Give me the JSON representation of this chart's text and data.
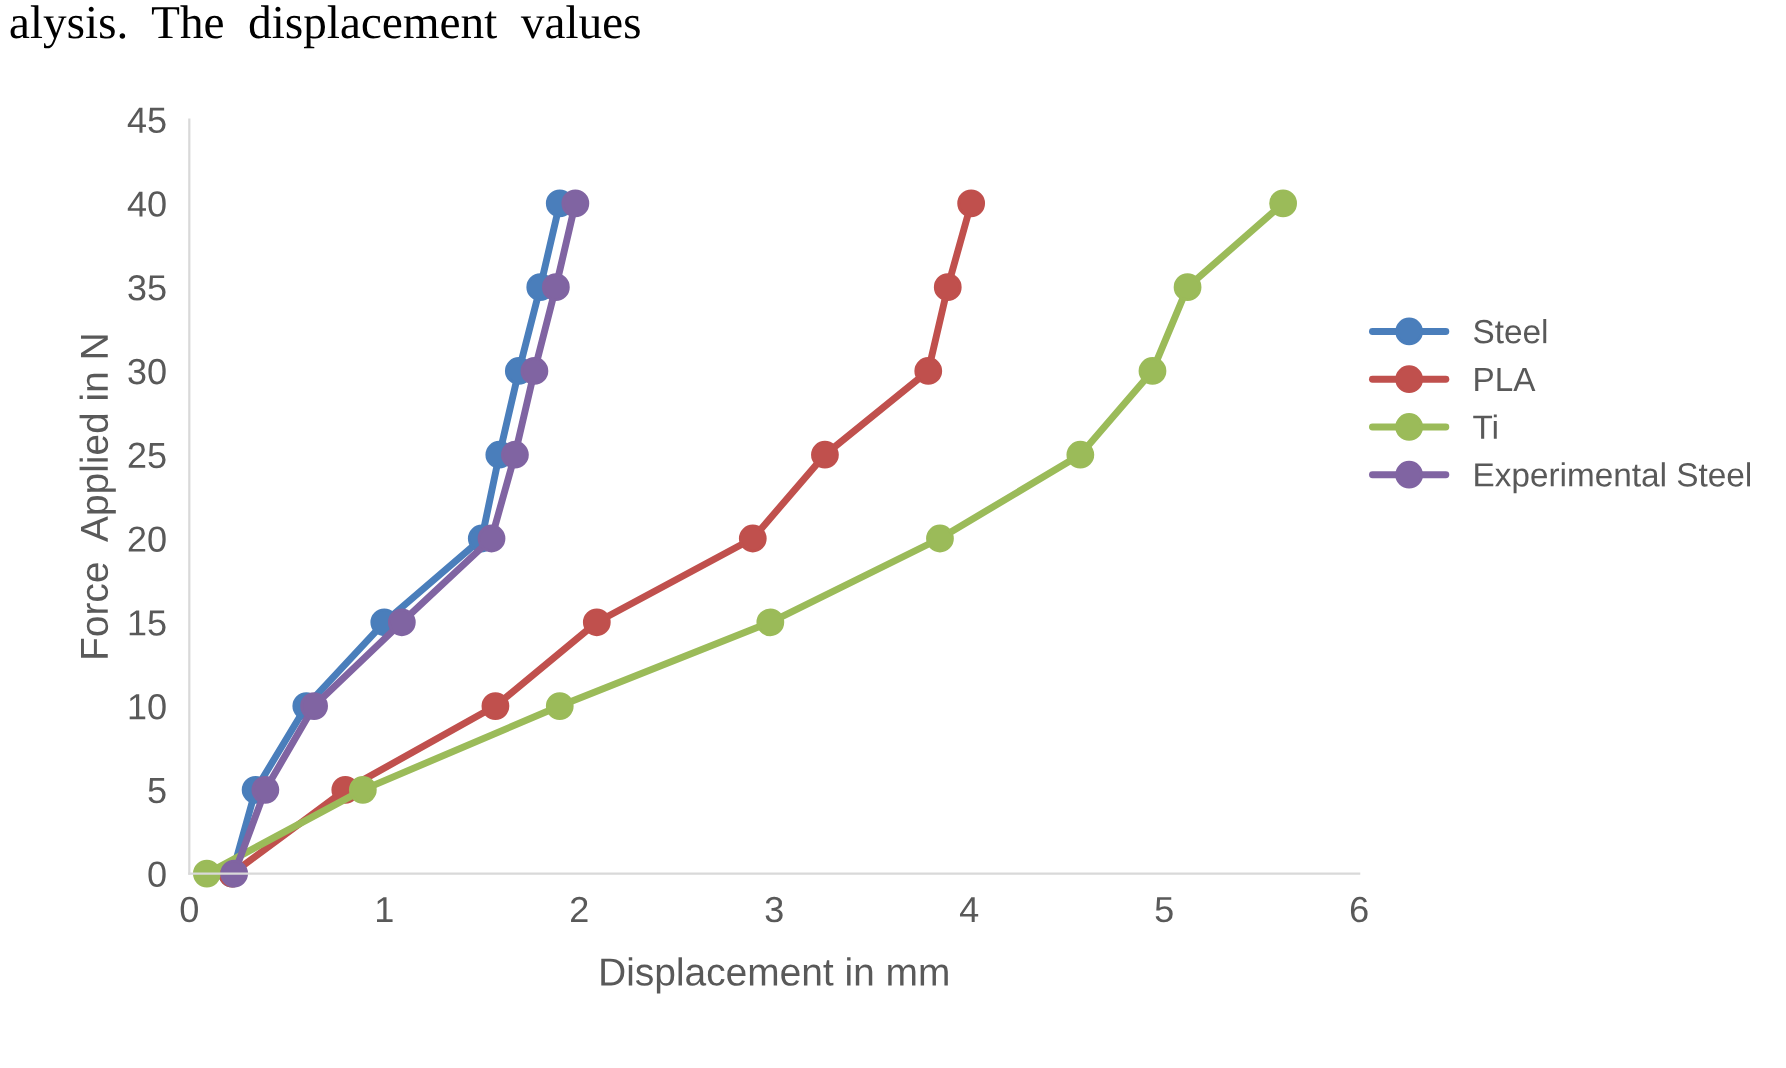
{
  "chart_data": {
    "type": "line",
    "xlabel": "Displacement in mm",
    "ylabel": "Force  Applied in N",
    "annotations": [
      "alysis.  The  displacement  values"
    ],
    "xlim": [
      0,
      6
    ],
    "xticks": [
      0,
      1,
      2,
      3,
      4,
      5,
      6
    ],
    "ylim": [
      0,
      45
    ],
    "yticks": [
      0,
      5,
      10,
      15,
      20,
      25,
      30,
      35,
      40,
      45
    ],
    "grid": false,
    "legend": "right",
    "marker": "circle",
    "line_style": "solid",
    "series": [
      {
        "name": "Steel",
        "color": "#4a7ebb",
        "x": [
          0.22,
          0.34,
          0.6,
          1.0,
          1.5,
          1.59,
          1.69,
          1.8,
          1.9
        ],
        "values": [
          0,
          5,
          10,
          15,
          20,
          25,
          30,
          35,
          40
        ]
      },
      {
        "name": "PLA",
        "color": "#c0504d",
        "x": [
          0.22,
          0.8,
          1.57,
          2.09,
          2.89,
          3.26,
          3.79,
          3.89,
          4.01
        ],
        "values": [
          0,
          5,
          10,
          15,
          20,
          25,
          30,
          35,
          40
        ]
      },
      {
        "name": "Ti",
        "color": "#9bbb59",
        "x": [
          0.09,
          0.89,
          1.9,
          2.98,
          3.85,
          4.57,
          4.94,
          5.12,
          5.61
        ],
        "values": [
          0,
          5,
          10,
          15,
          20,
          25,
          30,
          35,
          40
        ]
      },
      {
        "name": "Experimental Steel",
        "color": "#8064a2",
        "x": [
          0.23,
          0.39,
          0.64,
          1.09,
          1.55,
          1.67,
          1.77,
          1.88,
          1.98
        ],
        "values": [
          0,
          5,
          10,
          15,
          20,
          25,
          30,
          35,
          40
        ]
      }
    ]
  }
}
